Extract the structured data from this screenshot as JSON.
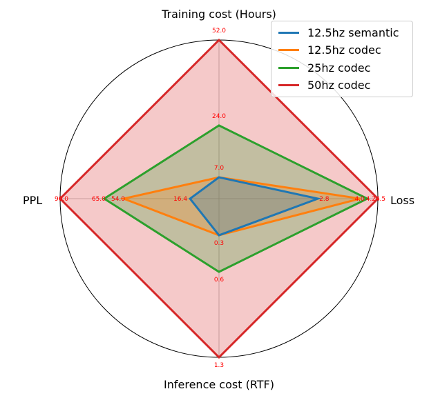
{
  "chart_data": {
    "type": "radar",
    "axes": [
      {
        "name": "Training cost (Hours)"
      },
      {
        "name": "Loss"
      },
      {
        "name": "Inference cost (RTF)"
      },
      {
        "name": "PPL"
      }
    ],
    "axis_max": [
      52.0,
      4.5,
      1.3,
      90.0
    ],
    "series": [
      {
        "name": "12.5hz semantic",
        "color": "#1f77b4",
        "values": [
          7.0,
          2.8,
          0.3,
          16.4
        ],
        "labels": [
          "7.0",
          "2.8",
          "0.3",
          "16.4"
        ]
      },
      {
        "name": "12.5hz codec",
        "color": "#ff7f0e",
        "values": [
          7.0,
          4.0,
          0.3,
          54.0
        ],
        "labels": [
          "",
          "4.0",
          "",
          "54.0"
        ]
      },
      {
        "name": "25hz codec",
        "color": "#2ca02c",
        "values": [
          24.0,
          4.2,
          0.6,
          65.0
        ],
        "labels": [
          "24.0",
          "4.2",
          "0.6",
          "65.0"
        ]
      },
      {
        "name": "50hz codec",
        "color": "#d62728",
        "values": [
          52.0,
          4.5,
          1.3,
          90.0
        ],
        "labels": [
          "52.0",
          "4.5",
          "1.3",
          "90.0"
        ]
      }
    ],
    "value_label_color": "#ff0000",
    "legend_position": "top-right",
    "grid": false
  }
}
